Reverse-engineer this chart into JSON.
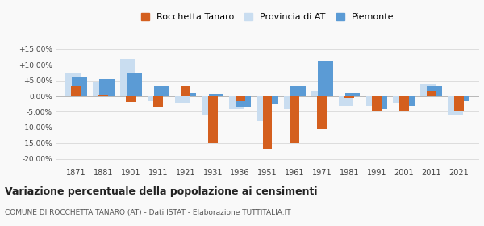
{
  "years": [
    1871,
    1881,
    1901,
    1911,
    1921,
    1931,
    1936,
    1951,
    1961,
    1971,
    1981,
    1991,
    2001,
    2011,
    2021
  ],
  "rocchetta": [
    3.5,
    0.2,
    -1.8,
    -3.5,
    3.0,
    -15.0,
    -1.5,
    -17.0,
    -15.0,
    -10.5,
    -0.5,
    -5.0,
    -5.0,
    1.5,
    -5.0
  ],
  "provincia": [
    7.5,
    4.5,
    12.0,
    -1.5,
    -2.0,
    -6.0,
    -4.0,
    -8.0,
    -4.0,
    1.5,
    -3.0,
    -3.0,
    -2.0,
    4.0,
    -6.0
  ],
  "piemonte": [
    6.0,
    5.5,
    7.5,
    3.0,
    1.0,
    0.5,
    -3.5,
    -2.5,
    3.0,
    11.0,
    1.0,
    -4.0,
    -3.0,
    3.5,
    -1.5
  ],
  "color_rocchetta": "#d45f1e",
  "color_provincia": "#c9ddf0",
  "color_piemonte": "#5b9bd5",
  "title": "Variazione percentuale della popolazione ai censimenti",
  "subtitle": "COMUNE DI ROCCHETTA TANARO (AT) - Dati ISTAT - Elaborazione TUTTITALIA.IT",
  "ylim": [
    -22,
    17
  ],
  "yticks": [
    -20.0,
    -15.0,
    -10.0,
    -5.0,
    0.0,
    5.0,
    10.0,
    15.0
  ],
  "background_color": "#f9f9f9",
  "grid_color": "#dddddd"
}
